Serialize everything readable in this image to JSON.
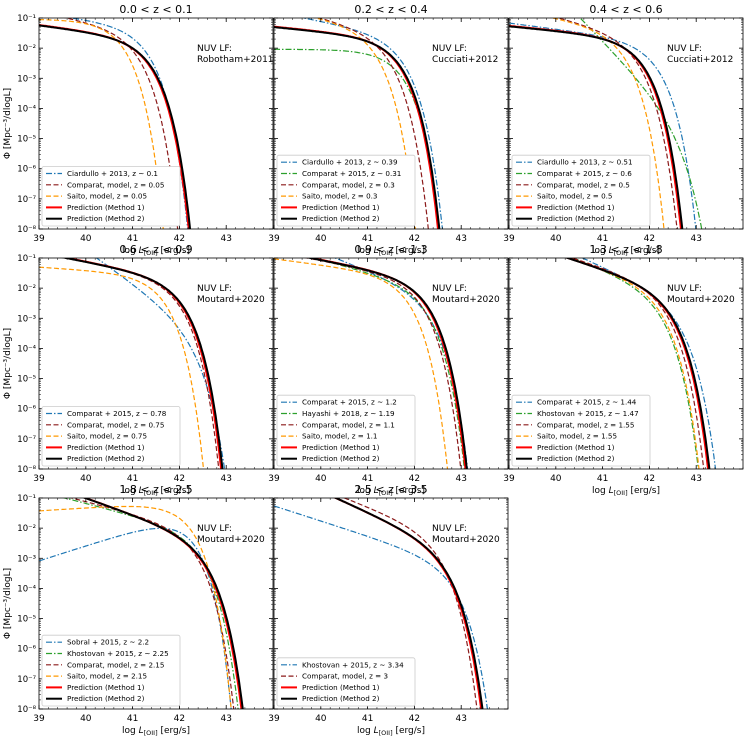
{
  "figure": {
    "ylabel": "Φ [Mpc⁻³/dlogL]",
    "xlabel": "log L[OII]   [erg/s]"
  },
  "chart_data": [
    {
      "type": "line",
      "title": "0.0 < z < 0.1",
      "annotation": [
        "NUV LF:",
        "Robotham+2011"
      ],
      "xlim": [
        39,
        44
      ],
      "ylim": [
        1e-08,
        0.1
      ],
      "yscale": "log",
      "xticks": [
        39,
        40,
        41,
        42,
        43
      ],
      "yticks": [
        "10⁻⁸",
        "10⁻⁷",
        "10⁻⁶",
        "10⁻⁵",
        "10⁻⁴",
        "10⁻³",
        "10⁻²",
        "10⁻¹"
      ],
      "legend": "lower-left",
      "series": [
        {
          "name": "Ciardullo + 2013, z ~ 0.1",
          "color": "#1f77b4",
          "dash": "dashdot",
          "lw": 1.2,
          "log_phi_star": -1.6,
          "log_L_star": 41.0,
          "alpha": -1.2
        },
        {
          "name": "Comparat, model, z = 0.05",
          "color": "#8b1a1a",
          "dash": "dashed",
          "lw": 1.2,
          "log_phi_star": -1.7,
          "log_L_star": 40.8,
          "alpha": -1.3
        },
        {
          "name": "Saito, model, z = 0.05",
          "color": "#ff9900",
          "dash": "dashed",
          "lw": 1.2,
          "log_phi_star": -1.4,
          "log_L_star": 40.45,
          "alpha": -1.0
        },
        {
          "name": "Prediction (Method 1)",
          "color": "#ff0000",
          "dash": "solid",
          "lw": 2.0,
          "log_phi_star": -2.0,
          "log_L_star": 41.05,
          "alpha": -1.2
        },
        {
          "name": "Prediction (Method 2)",
          "color": "#000000",
          "dash": "solid",
          "lw": 2.0,
          "log_phi_star": -2.02,
          "log_L_star": 41.08,
          "alpha": -1.2
        }
      ]
    },
    {
      "type": "line",
      "title": "0.2 < z < 0.4",
      "annotation": [
        "NUV LF:",
        "Cucciati+2012"
      ],
      "xlim": [
        39,
        44
      ],
      "ylim": [
        1e-08,
        0.1
      ],
      "yscale": "log",
      "xticks": [
        39,
        40,
        41,
        42,
        43
      ],
      "yticks": [
        "10⁻⁸",
        "10⁻⁷",
        "10⁻⁶",
        "10⁻⁵",
        "10⁻⁴",
        "10⁻³",
        "10⁻²",
        "10⁻¹"
      ],
      "legend": "lower-left",
      "series": [
        {
          "name": "Ciardullo + 2013, z ~ 0.39",
          "color": "#1f77b4",
          "dash": "dashdot",
          "lw": 1.2,
          "log_phi_star": -1.9,
          "log_L_star": 41.45,
          "alpha": -1.3
        },
        {
          "name": "Comparat + 2015, z ~ 0.31",
          "color": "#2ca02c",
          "dash": "dashdot",
          "lw": 1.2,
          "log_phi_star": -2.4,
          "log_L_star": 41.4,
          "alpha": -1.0
        },
        {
          "name": "Comparat, model, z = 0.3",
          "color": "#8b1a1a",
          "dash": "dashed",
          "lw": 1.2,
          "log_phi_star": -1.8,
          "log_L_star": 41.15,
          "alpha": -1.4
        },
        {
          "name": "Saito, model, z = 0.3",
          "color": "#ff9900",
          "dash": "dashed",
          "lw": 1.2,
          "log_phi_star": -1.6,
          "log_L_star": 40.85,
          "alpha": -1.3
        },
        {
          "name": "Prediction (Method 1)",
          "color": "#ff0000",
          "dash": "solid",
          "lw": 2.0,
          "log_phi_star": -2.0,
          "log_L_star": 41.35,
          "alpha": -1.15
        },
        {
          "name": "Prediction (Method 2)",
          "color": "#000000",
          "dash": "solid",
          "lw": 2.0,
          "log_phi_star": -2.02,
          "log_L_star": 41.38,
          "alpha": -1.15
        }
      ]
    },
    {
      "type": "line",
      "title": "0.4 < z < 0.6",
      "annotation": [
        "NUV LF:",
        "Cucciati+2012"
      ],
      "xlim": [
        39,
        44
      ],
      "ylim": [
        1e-08,
        0.1
      ],
      "yscale": "log",
      "xticks": [
        39,
        40,
        41,
        42,
        43
      ],
      "yticks": [
        "10⁻⁸",
        "10⁻⁷",
        "10⁻⁶",
        "10⁻⁵",
        "10⁻⁴",
        "10⁻³",
        "10⁻²",
        "10⁻¹"
      ],
      "legend": "lower-left",
      "series": [
        {
          "name": "Ciardullo + 2013, z ~ 0.51",
          "color": "#1f77b4",
          "dash": "dashdot",
          "lw": 1.2,
          "log_phi_star": -2.1,
          "log_L_star": 41.85,
          "alpha": -1.2
        },
        {
          "name": "Comparat + 2015, z ~ 0.6",
          "color": "#2ca02c",
          "dash": "dashdot",
          "lw": 1.2,
          "log_phi_star": -4.2,
          "log_L_star": 42.3,
          "alpha": -2.6
        },
        {
          "name": "Comparat, model, z = 0.5",
          "color": "#8b1a1a",
          "dash": "dashed",
          "lw": 1.2,
          "log_phi_star": -1.9,
          "log_L_star": 41.45,
          "alpha": -1.4
        },
        {
          "name": "Saito, model, z = 0.5",
          "color": "#ff9900",
          "dash": "dashed",
          "lw": 1.2,
          "log_phi_star": -1.7,
          "log_L_star": 41.15,
          "alpha": -1.3
        },
        {
          "name": "Prediction (Method 1)",
          "color": "#ff0000",
          "dash": "solid",
          "lw": 2.0,
          "log_phi_star": -2.0,
          "log_L_star": 41.52,
          "alpha": -1.15
        },
        {
          "name": "Prediction (Method 2)",
          "color": "#000000",
          "dash": "solid",
          "lw": 2.0,
          "log_phi_star": -2.02,
          "log_L_star": 41.55,
          "alpha": -1.15
        }
      ]
    },
    {
      "type": "line",
      "title": "0.6 < z < 0.9",
      "annotation": [
        "NUV LF:",
        "Moutard+2020"
      ],
      "xlim": [
        39,
        44
      ],
      "ylim": [
        1e-08,
        0.1
      ],
      "yscale": "log",
      "xticks": [
        39,
        40,
        41,
        42,
        43
      ],
      "yticks": [
        "10⁻⁸",
        "10⁻⁷",
        "10⁻⁶",
        "10⁻⁵",
        "10⁻⁴",
        "10⁻³",
        "10⁻²",
        "10⁻¹"
      ],
      "legend": "lower-left",
      "series": [
        {
          "name": "Comparat + 2015, z ~ 0.78",
          "color": "#1f77b4",
          "dash": "dashdot",
          "lw": 1.2,
          "log_phi_star": -3.3,
          "log_L_star": 42.0,
          "alpha": -2.1
        },
        {
          "name": "Comparat, model, z = 0.75",
          "color": "#8b1a1a",
          "dash": "dashed",
          "lw": 1.2,
          "log_phi_star": -2.0,
          "log_L_star": 41.7,
          "alpha": -1.3
        },
        {
          "name": "Saito, model, z = 0.75",
          "color": "#ff9900",
          "dash": "dashed",
          "lw": 1.2,
          "log_phi_star": -1.9,
          "log_L_star": 41.35,
          "alpha": -1.1
        },
        {
          "name": "Prediction (Method 1)",
          "color": "#ff0000",
          "dash": "solid",
          "lw": 2.0,
          "log_phi_star": -2.0,
          "log_L_star": 41.75,
          "alpha": -1.3
        },
        {
          "name": "Prediction (Method 2)",
          "color": "#000000",
          "dash": "solid",
          "lw": 2.0,
          "log_phi_star": -2.02,
          "log_L_star": 41.78,
          "alpha": -1.3
        }
      ]
    },
    {
      "type": "line",
      "title": "0.9 < z < 1.3",
      "annotation": [
        "NUV LF:",
        "Moutard+2020"
      ],
      "xlim": [
        39,
        44
      ],
      "ylim": [
        1e-08,
        0.1
      ],
      "yscale": "log",
      "xticks": [
        39,
        40,
        41,
        42,
        43
      ],
      "yticks": [
        "10⁻⁸",
        "10⁻⁷",
        "10⁻⁶",
        "10⁻⁵",
        "10⁻⁴",
        "10⁻³",
        "10⁻²",
        "10⁻¹"
      ],
      "legend": "lower-left",
      "series": [
        {
          "name": "Comparat + 2015, z ~ 1.2",
          "color": "#1f77b4",
          "dash": "dashdot",
          "lw": 1.2,
          "log_phi_star": -2.4,
          "log_L_star": 42.05,
          "alpha": -1.6
        },
        {
          "name": "Hayashi + 2018, z ~ 1.19",
          "color": "#2ca02c",
          "dash": "dashdot",
          "lw": 1.2,
          "log_phi_star": -2.2,
          "log_L_star": 41.95,
          "alpha": -1.4
        },
        {
          "name": "Comparat, model, z = 1.1",
          "color": "#8b1a1a",
          "dash": "dashed",
          "lw": 1.2,
          "log_phi_star": -2.0,
          "log_L_star": 41.85,
          "alpha": -1.3
        },
        {
          "name": "Saito, model, z = 1.1",
          "color": "#ff9900",
          "dash": "dashed",
          "lw": 1.2,
          "log_phi_star": -1.9,
          "log_L_star": 41.55,
          "alpha": -1.2
        },
        {
          "name": "Prediction (Method 1)",
          "color": "#ff0000",
          "dash": "solid",
          "lw": 2.0,
          "log_phi_star": -2.0,
          "log_L_star": 41.95,
          "alpha": -1.3
        },
        {
          "name": "Prediction (Method 2)",
          "color": "#000000",
          "dash": "solid",
          "lw": 2.0,
          "log_phi_star": -2.02,
          "log_L_star": 41.98,
          "alpha": -1.3
        }
      ]
    },
    {
      "type": "line",
      "title": "1.3 < z < 1.8",
      "annotation": [
        "NUV LF:",
        "Moutard+2020"
      ],
      "xlim": [
        39,
        44
      ],
      "ylim": [
        1e-08,
        0.1
      ],
      "yscale": "log",
      "xticks": [
        39,
        40,
        41,
        42,
        43
      ],
      "yticks": [
        "10⁻⁸",
        "10⁻⁷",
        "10⁻⁶",
        "10⁻⁵",
        "10⁻⁴",
        "10⁻³",
        "10⁻²",
        "10⁻¹"
      ],
      "legend": "lower-left",
      "series": [
        {
          "name": "Comparat + 2015, z ~ 1.44",
          "color": "#1f77b4",
          "dash": "dashdot",
          "lw": 1.2,
          "log_phi_star": -2.6,
          "log_L_star": 42.35,
          "alpha": -1.7
        },
        {
          "name": "Khostovan + 2015, z ~ 1.47",
          "color": "#2ca02c",
          "dash": "dashdot",
          "lw": 1.2,
          "log_phi_star": -2.3,
          "log_L_star": 41.95,
          "alpha": -1.6
        },
        {
          "name": "Comparat, model, z = 1.55",
          "color": "#8b1a1a",
          "dash": "dashed",
          "lw": 1.2,
          "log_phi_star": -2.2,
          "log_L_star": 42.05,
          "alpha": -1.5
        },
        {
          "name": "Saito, model, z = 1.55",
          "color": "#ff9900",
          "dash": "dashed",
          "lw": 1.2,
          "log_phi_star": -2.2,
          "log_L_star": 41.95,
          "alpha": -1.5
        },
        {
          "name": "Prediction (Method 1)",
          "color": "#ff0000",
          "dash": "solid",
          "lw": 2.0,
          "log_phi_star": -2.3,
          "log_L_star": 42.15,
          "alpha": -1.5
        },
        {
          "name": "Prediction (Method 2)",
          "color": "#000000",
          "dash": "solid",
          "lw": 2.0,
          "log_phi_star": -2.32,
          "log_L_star": 42.18,
          "alpha": -1.5
        }
      ]
    },
    {
      "type": "line",
      "title": "1.8 < z < 2.5",
      "annotation": [
        "NUV LF:",
        "Moutard+2020"
      ],
      "xlim": [
        39,
        44
      ],
      "ylim": [
        1e-08,
        0.1
      ],
      "yscale": "log",
      "xticks": [
        39,
        40,
        41,
        42,
        43
      ],
      "yticks": [
        "10⁻⁸",
        "10⁻⁷",
        "10⁻⁶",
        "10⁻⁵",
        "10⁻⁴",
        "10⁻³",
        "10⁻²",
        "10⁻¹"
      ],
      "legend": "lower-left",
      "series": [
        {
          "name": "Sobral + 2015, z ~ 2.2",
          "color": "#1f77b4",
          "dash": "dashdot",
          "lw": 1.2,
          "log_phi_star": -2.0,
          "log_L_star": 41.9,
          "alpha": -0.5
        },
        {
          "name": "Khostovan + 2015, z ~ 2.25",
          "color": "#2ca02c",
          "dash": "dashdot",
          "lw": 1.2,
          "log_phi_star": -2.4,
          "log_L_star": 42.15,
          "alpha": -1.4
        },
        {
          "name": "Comparat, model, z = 2.15",
          "color": "#8b1a1a",
          "dash": "dashed",
          "lw": 1.2,
          "log_phi_star": -2.3,
          "log_L_star": 42.05,
          "alpha": -1.4
        },
        {
          "name": "Saito, model, z = 2.15",
          "color": "#ff9900",
          "dash": "dashed",
          "lw": 1.2,
          "log_phi_star": -1.5,
          "log_L_star": 41.9,
          "alpha": -0.9
        },
        {
          "name": "Prediction (Method 1)",
          "color": "#ff0000",
          "dash": "solid",
          "lw": 2.0,
          "log_phi_star": -2.6,
          "log_L_star": 42.25,
          "alpha": -1.55
        },
        {
          "name": "Prediction (Method 2)",
          "color": "#000000",
          "dash": "solid",
          "lw": 2.0,
          "log_phi_star": -2.62,
          "log_L_star": 42.28,
          "alpha": -1.55
        }
      ]
    },
    {
      "type": "line",
      "title": "2.5 < z < 3.5",
      "annotation": [
        "NUV LF:",
        "Moutard+2020"
      ],
      "xlim": [
        39,
        44
      ],
      "ylim": [
        1e-08,
        0.1
      ],
      "yscale": "log",
      "xticks": [
        39,
        40,
        41,
        42,
        43
      ],
      "yticks": [
        "10⁻⁸",
        "10⁻⁷",
        "10⁻⁶",
        "10⁻⁵",
        "10⁻⁴",
        "10⁻³",
        "10⁻²",
        "10⁻¹"
      ],
      "legend": "lower-left",
      "series": [
        {
          "name": "Khostovan + 2015, z ~ 3.34",
          "color": "#1f77b4",
          "dash": "dashdot",
          "lw": 1.2,
          "log_phi_star": -3.4,
          "log_L_star": 42.55,
          "alpha": -1.5
        },
        {
          "name": "Comparat, model, z = 3",
          "color": "#8b1a1a",
          "dash": "dashed",
          "lw": 1.2,
          "log_phi_star": -2.4,
          "log_L_star": 42.25,
          "alpha": -1.6
        },
        {
          "name": "Prediction (Method 1)",
          "color": "#ff0000",
          "dash": "solid",
          "lw": 2.0,
          "log_phi_star": -2.8,
          "log_L_star": 42.38,
          "alpha": -1.7
        },
        {
          "name": "Prediction (Method 2)",
          "color": "#000000",
          "dash": "solid",
          "lw": 2.0,
          "log_phi_star": -2.82,
          "log_L_star": 42.41,
          "alpha": -1.7
        }
      ]
    }
  ]
}
